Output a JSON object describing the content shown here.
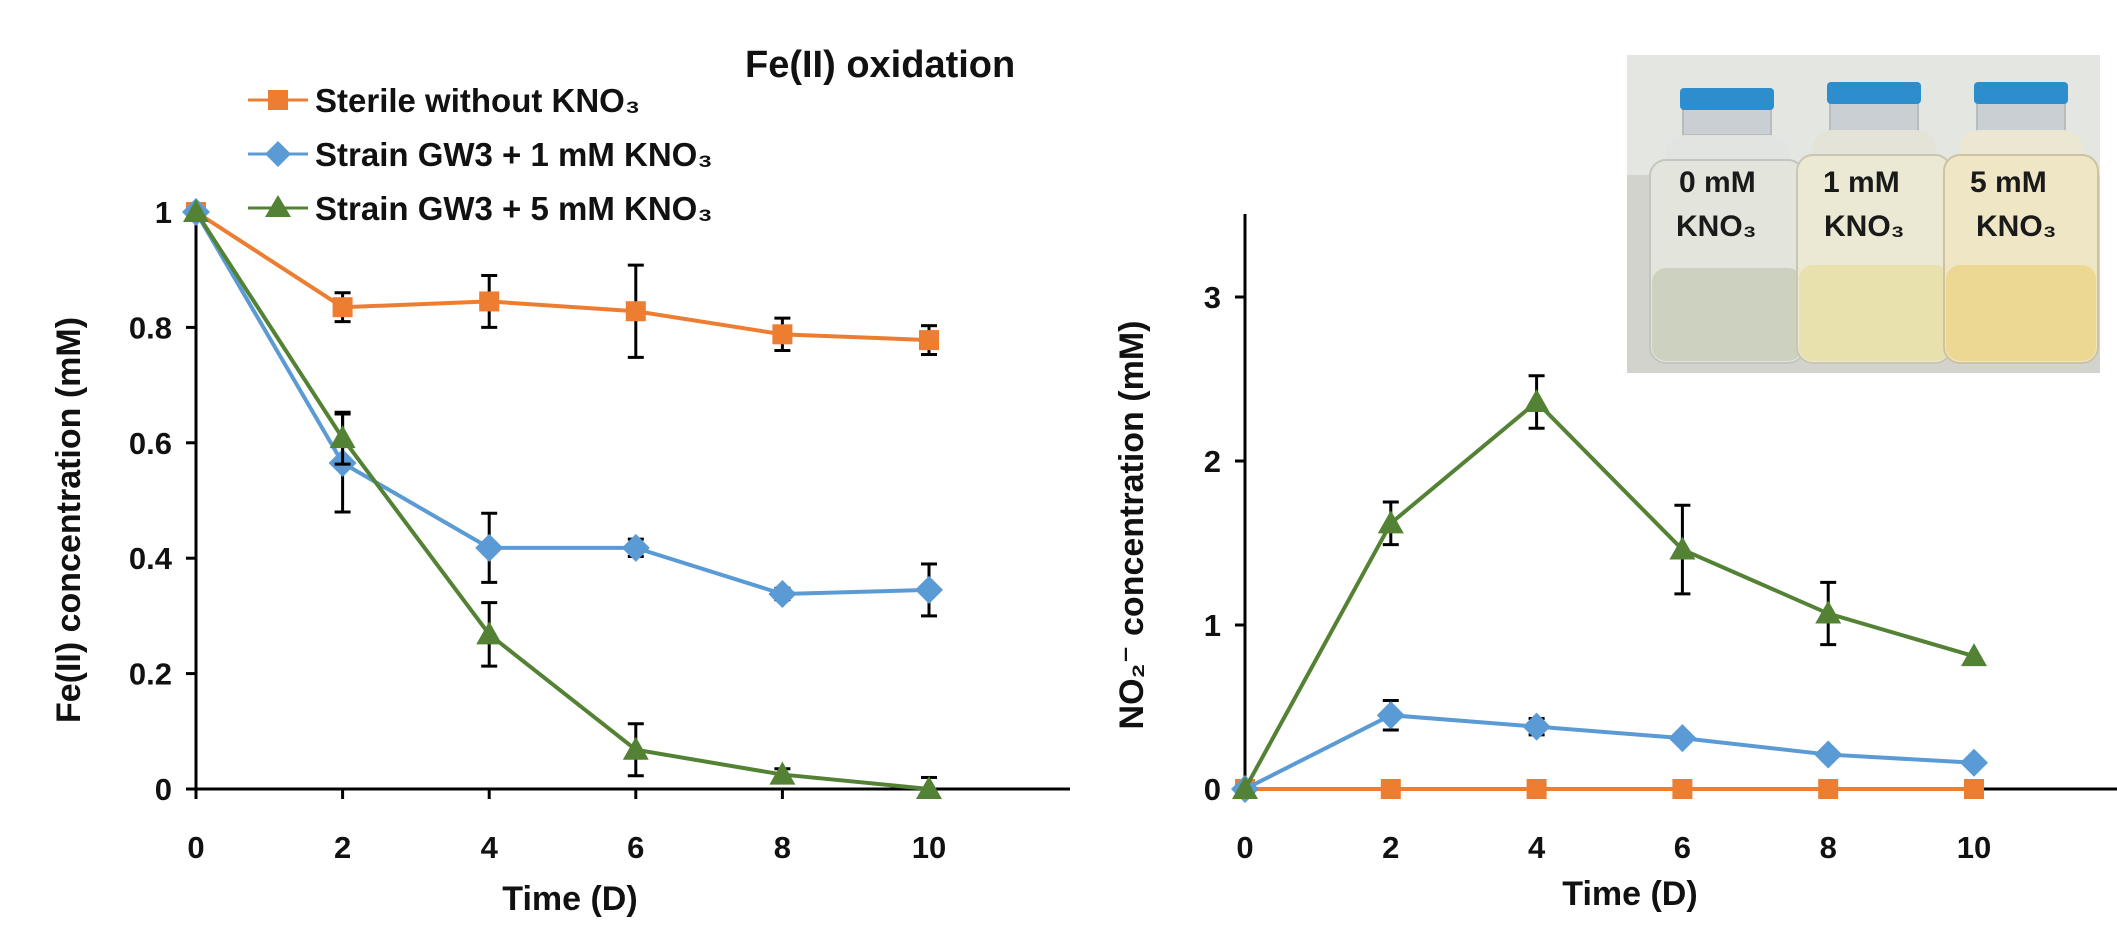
{
  "figure_title": "Fe(II) oxidation",
  "legend": [
    {
      "label": "Sterile without KNO₃",
      "color": "#ED7D31",
      "marker": "square"
    },
    {
      "label": "Strain GW3 + 1 mM KNO₃",
      "color": "#5B9BD5",
      "marker": "diamond"
    },
    {
      "label": "Strain GW3 + 5 mM KNO₃",
      "color": "#548235",
      "marker": "triangle"
    }
  ],
  "photo_labels": [
    {
      "top": "0 mM",
      "bottom": "KNO₃"
    },
    {
      "top": "1 mM",
      "bottom": "KNO₃"
    },
    {
      "top": "5 mM",
      "bottom": "KNO₃"
    }
  ],
  "chart_data": [
    {
      "type": "line",
      "xlabel": "Time (D)",
      "ylabel": "Fe(II) concentration (mM)",
      "xlim": [
        0,
        12
      ],
      "ylim": [
        0,
        1.1
      ],
      "xticks": [
        0,
        2,
        4,
        6,
        8,
        10
      ],
      "yticks": [
        0,
        0.2,
        0.4,
        0.6,
        0.8,
        1
      ],
      "ytick_labels": [
        "0",
        "0.2",
        "0.4",
        "0.6",
        "0.8",
        "1"
      ],
      "series": [
        {
          "name": "Sterile without KNO₃",
          "color": "#ED7D31",
          "marker": "square",
          "x": [
            0,
            2,
            4,
            6,
            8,
            10
          ],
          "y": [
            1.0,
            0.835,
            0.845,
            0.828,
            0.788,
            0.778
          ],
          "err": [
            0.0,
            0.025,
            0.045,
            0.08,
            0.028,
            0.025
          ]
        },
        {
          "name": "Strain GW3 + 1 mM KNO₃",
          "color": "#5B9BD5",
          "marker": "diamond",
          "x": [
            0,
            2,
            4,
            6,
            8,
            10
          ],
          "y": [
            1.0,
            0.565,
            0.418,
            0.418,
            0.338,
            0.345
          ],
          "err": [
            0.0,
            0.085,
            0.06,
            0.015,
            0.01,
            0.045
          ]
        },
        {
          "name": "Strain GW3 + 5 mM KNO₃",
          "color": "#548235",
          "marker": "triangle",
          "x": [
            0,
            2,
            4,
            6,
            8,
            10
          ],
          "y": [
            1.0,
            0.608,
            0.268,
            0.068,
            0.025,
            0.0
          ],
          "err": [
            0.0,
            0.045,
            0.055,
            0.045,
            0.01,
            0.02
          ]
        }
      ]
    },
    {
      "type": "line",
      "xlabel": "Time (D)",
      "ylabel": "NO₂⁻ concentration (mM)",
      "xlim": [
        0,
        12
      ],
      "ylim": [
        0,
        3.5
      ],
      "xticks": [
        0,
        2,
        4,
        6,
        8,
        10
      ],
      "yticks": [
        0,
        1,
        2,
        3
      ],
      "ytick_labels": [
        "0",
        "1",
        "2",
        "3"
      ],
      "series": [
        {
          "name": "Sterile without KNO₃",
          "color": "#ED7D31",
          "marker": "square",
          "x": [
            0,
            2,
            4,
            6,
            8,
            10
          ],
          "y": [
            0,
            0,
            0,
            0,
            0,
            0
          ],
          "err": [
            0,
            0,
            0,
            0,
            0,
            0
          ]
        },
        {
          "name": "Strain GW3 + 1 mM KNO₃",
          "color": "#5B9BD5",
          "marker": "diamond",
          "x": [
            0,
            2,
            4,
            6,
            8,
            10
          ],
          "y": [
            0,
            0.45,
            0.38,
            0.31,
            0.21,
            0.16
          ],
          "err": [
            0,
            0.09,
            0.05,
            0.0,
            0.0,
            0.0
          ]
        },
        {
          "name": "Strain GW3 + 5 mM KNO₃",
          "color": "#548235",
          "marker": "triangle",
          "x": [
            0,
            2,
            4,
            6,
            8,
            10
          ],
          "y": [
            0,
            1.62,
            2.36,
            1.46,
            1.07,
            0.81
          ],
          "err": [
            0,
            0.13,
            0.16,
            0.27,
            0.19,
            0.0
          ]
        }
      ]
    }
  ]
}
